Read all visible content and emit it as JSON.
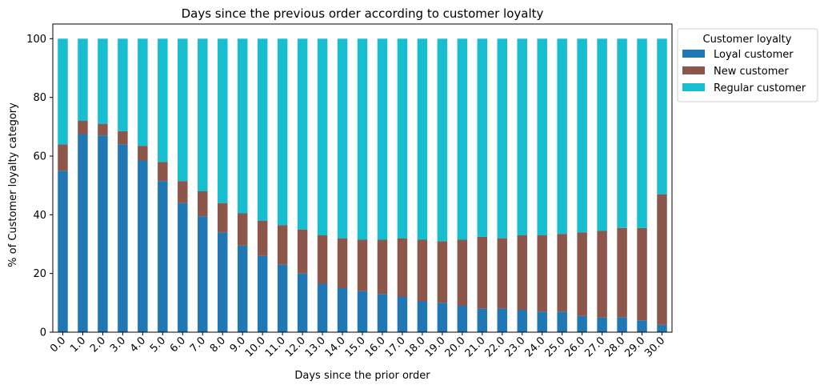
{
  "chart_data": {
    "type": "bar",
    "stacked": true,
    "title": "Days since the previous order according to customer loyalty",
    "xlabel": "Days since the prior order",
    "ylabel": "% of Customer loyalty category",
    "ylim": [
      0,
      105
    ],
    "yticks": [
      "0",
      "20",
      "40",
      "60",
      "80",
      "100"
    ],
    "categories": [
      "0.0",
      "1.0",
      "2.0",
      "3.0",
      "4.0",
      "5.0",
      "6.0",
      "7.0",
      "8.0",
      "9.0",
      "10.0",
      "11.0",
      "12.0",
      "13.0",
      "14.0",
      "15.0",
      "16.0",
      "17.0",
      "18.0",
      "19.0",
      "20.0",
      "21.0",
      "22.0",
      "23.0",
      "24.0",
      "25.0",
      "26.0",
      "27.0",
      "28.0",
      "29.0",
      "30.0"
    ],
    "legend_title": "Customer loyalty",
    "legend_position": "outside-top-right",
    "grid": false,
    "series": [
      {
        "name": "Loyal customer",
        "color": "#1f77b4",
        "values": [
          55,
          67.5,
          67,
          64,
          58.5,
          51.5,
          44,
          39.5,
          34,
          29.5,
          26,
          23,
          20,
          16.5,
          15,
          14,
          13,
          12,
          10.5,
          10,
          9,
          8,
          8,
          7.5,
          7,
          7,
          5.5,
          5,
          5,
          4,
          2.5
        ]
      },
      {
        "name": "New customer",
        "color": "#8c564b",
        "values": [
          9,
          4.5,
          4,
          4.5,
          5,
          6.5,
          7.5,
          8.5,
          10,
          11,
          12,
          13.5,
          15,
          16.5,
          17,
          17.5,
          18.5,
          20,
          21,
          21,
          22.5,
          24.5,
          24,
          25.5,
          26,
          26.5,
          28.5,
          29.5,
          30.5,
          31.5,
          44.5
        ]
      },
      {
        "name": "Regular customer",
        "color": "#17becf",
        "values": [
          36,
          28,
          29,
          31.5,
          36.5,
          42,
          48.5,
          52,
          56,
          59.5,
          62,
          63.5,
          65,
          67,
          68,
          68.5,
          68.5,
          68,
          68.5,
          69,
          68.5,
          67.5,
          68,
          67,
          67,
          66.5,
          66,
          65.5,
          64.5,
          64.5,
          53
        ]
      }
    ]
  }
}
